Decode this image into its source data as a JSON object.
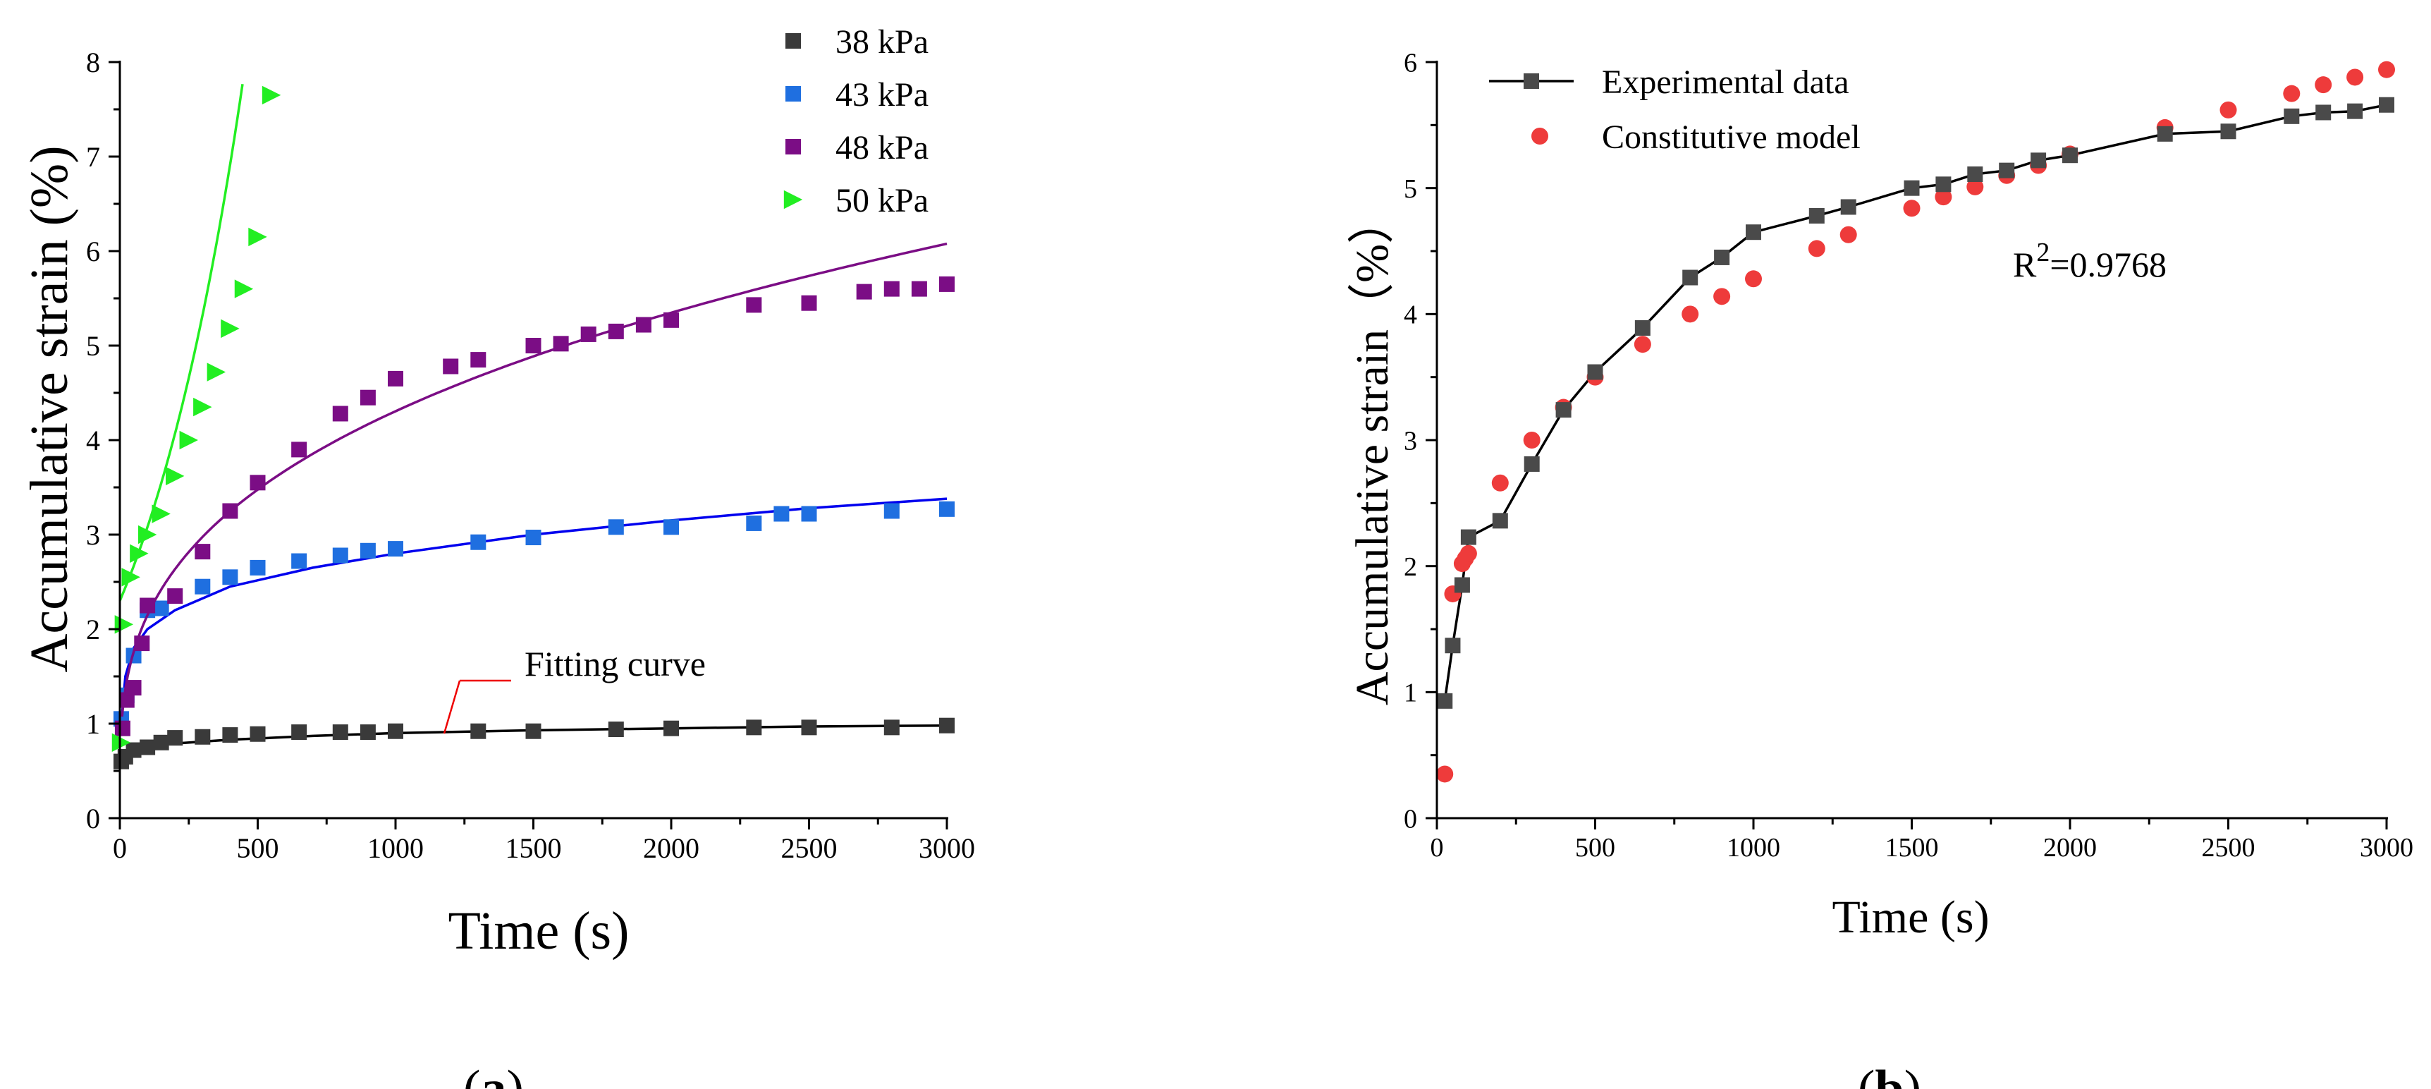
{
  "colors": {
    "axis": "#000000",
    "s38": "#3a3a3a",
    "s43": "#1f6fe0",
    "s48": "#7b0d85",
    "s50": "#22ee22",
    "fit38": "#000000",
    "fit43": "#0000ee",
    "fit48": "#7b0d85",
    "fit50": "#22ee22",
    "exp": "#4a4a4a",
    "model": "#ee3b3b",
    "annotation": "#ee0000"
  },
  "chart_data": [
    {
      "type": "scatter",
      "panel_label_open": "(",
      "panel_label_letter": "a",
      "panel_label_close": ")",
      "xlabel": "Time (s)",
      "ylabel": "Accumulative strain (%)",
      "xlim": [
        0,
        3000
      ],
      "ylim": [
        0,
        8
      ],
      "xticks": [
        0,
        500,
        1000,
        1500,
        2000,
        2500,
        3000
      ],
      "yticks": [
        0,
        1,
        2,
        3,
        4,
        5,
        6,
        7,
        8
      ],
      "legend_position": "top-right",
      "annotation": "Fitting curve",
      "series": [
        {
          "name": "38 kPa",
          "marker": "square",
          "color_key": "s38",
          "x": [
            5,
            20,
            50,
            100,
            150,
            200,
            300,
            400,
            500,
            650,
            800,
            900,
            1000,
            1300,
            1500,
            1800,
            2000,
            2300,
            2500,
            2800,
            3000
          ],
          "y": [
            0.6,
            0.65,
            0.72,
            0.75,
            0.8,
            0.85,
            0.86,
            0.88,
            0.89,
            0.91,
            0.91,
            0.91,
            0.92,
            0.92,
            0.92,
            0.94,
            0.95,
            0.96,
            0.96,
            0.96,
            0.98
          ],
          "fit": [
            [
              10,
              0.65
            ],
            [
              50,
              0.72
            ],
            [
              100,
              0.76
            ],
            [
              200,
              0.79
            ],
            [
              400,
              0.83
            ],
            [
              700,
              0.87
            ],
            [
              1000,
              0.9
            ],
            [
              1500,
              0.93
            ],
            [
              2000,
              0.95
            ],
            [
              2500,
              0.97
            ],
            [
              3000,
              0.98
            ]
          ],
          "fit_color_key": "fit38"
        },
        {
          "name": "43 kPa",
          "marker": "square",
          "color_key": "s43",
          "x": [
            5,
            25,
            50,
            100,
            150,
            300,
            400,
            500,
            650,
            800,
            900,
            1000,
            1300,
            1500,
            1800,
            2000,
            2300,
            2400,
            2500,
            2800,
            3000
          ],
          "y": [
            1.05,
            1.3,
            1.72,
            2.2,
            2.22,
            2.45,
            2.55,
            2.65,
            2.72,
            2.78,
            2.83,
            2.85,
            2.92,
            2.97,
            3.08,
            3.08,
            3.12,
            3.22,
            3.22,
            3.25,
            3.27
          ],
          "fit": [
            [
              5,
              1.0
            ],
            [
              20,
              1.5
            ],
            [
              50,
              1.8
            ],
            [
              100,
              2.0
            ],
            [
              200,
              2.2
            ],
            [
              400,
              2.45
            ],
            [
              700,
              2.65
            ],
            [
              1000,
              2.8
            ],
            [
              1500,
              3.0
            ],
            [
              2000,
              3.15
            ],
            [
              2500,
              3.28
            ],
            [
              3000,
              3.38
            ]
          ],
          "fit_color_key": "fit43"
        },
        {
          "name": "48 kPa",
          "marker": "square",
          "color_key": "s48",
          "x": [
            10,
            25,
            50,
            80,
            100,
            200,
            300,
            400,
            500,
            650,
            800,
            900,
            1000,
            1200,
            1300,
            1500,
            1600,
            1700,
            1800,
            1900,
            2000,
            2300,
            2500,
            2700,
            2800,
            2900,
            3000
          ],
          "y": [
            0.95,
            1.25,
            1.38,
            1.85,
            2.25,
            2.35,
            2.82,
            3.25,
            3.55,
            3.9,
            4.28,
            4.45,
            4.65,
            4.78,
            4.85,
            5.0,
            5.02,
            5.12,
            5.15,
            5.22,
            5.27,
            5.43,
            5.45,
            5.57,
            5.6,
            5.6,
            5.65
          ]
        },
        {
          "name": "50 kPa",
          "marker": "triangle-right",
          "color_key": "s50",
          "x": [
            5,
            15,
            40,
            70,
            100,
            150,
            200,
            250,
            300,
            350,
            400,
            450,
            500,
            550
          ],
          "y": [
            0.8,
            2.05,
            2.55,
            2.8,
            3.0,
            3.22,
            3.62,
            4.0,
            4.35,
            4.72,
            5.18,
            5.6,
            6.15,
            7.65
          ]
        }
      ]
    },
    {
      "type": "scatter",
      "panel_label_open": "(",
      "panel_label_letter": "b",
      "panel_label_close": ")",
      "xlabel": "Time (s)",
      "ylabel": "Accumulative strain（%）",
      "xlim": [
        0,
        3000
      ],
      "ylim": [
        0,
        6
      ],
      "xticks": [
        0,
        500,
        1000,
        1500,
        2000,
        2500,
        3000
      ],
      "yticks": [
        0,
        1,
        2,
        3,
        4,
        5,
        6
      ],
      "legend_position": "top-left",
      "annotation_base": "R",
      "annotation_sup": "2",
      "annotation_value": "=0.9768",
      "series": [
        {
          "name": "Experimental data",
          "marker": "square-line",
          "color_key": "exp",
          "x": [
            25,
            50,
            80,
            100,
            200,
            300,
            400,
            500,
            650,
            800,
            900,
            1000,
            1200,
            1300,
            1500,
            1600,
            1700,
            1800,
            1900,
            2000,
            2300,
            2500,
            2700,
            2800,
            2900,
            3000
          ],
          "y": [
            0.93,
            1.37,
            1.85,
            2.23,
            2.36,
            2.81,
            3.24,
            3.54,
            3.89,
            4.29,
            4.45,
            4.65,
            4.78,
            4.85,
            5.0,
            5.03,
            5.11,
            5.14,
            5.22,
            5.26,
            5.43,
            5.45,
            5.57,
            5.6,
            5.61,
            5.66
          ]
        },
        {
          "name": "Constitutive model",
          "marker": "circle",
          "color_key": "model",
          "x": [
            25,
            50,
            80,
            90,
            100,
            200,
            300,
            400,
            500,
            650,
            800,
            900,
            1000,
            1200,
            1300,
            1500,
            1600,
            1700,
            1800,
            1900,
            2000,
            2300,
            2500,
            2700,
            2800,
            2900,
            3000
          ],
          "y": [
            0.35,
            1.78,
            2.02,
            2.06,
            2.1,
            2.66,
            3.0,
            3.26,
            3.5,
            3.76,
            4.0,
            4.14,
            4.28,
            4.52,
            4.63,
            4.84,
            4.93,
            5.01,
            5.1,
            5.18,
            5.27,
            5.48,
            5.62,
            5.75,
            5.82,
            5.88,
            5.94
          ]
        }
      ]
    }
  ]
}
